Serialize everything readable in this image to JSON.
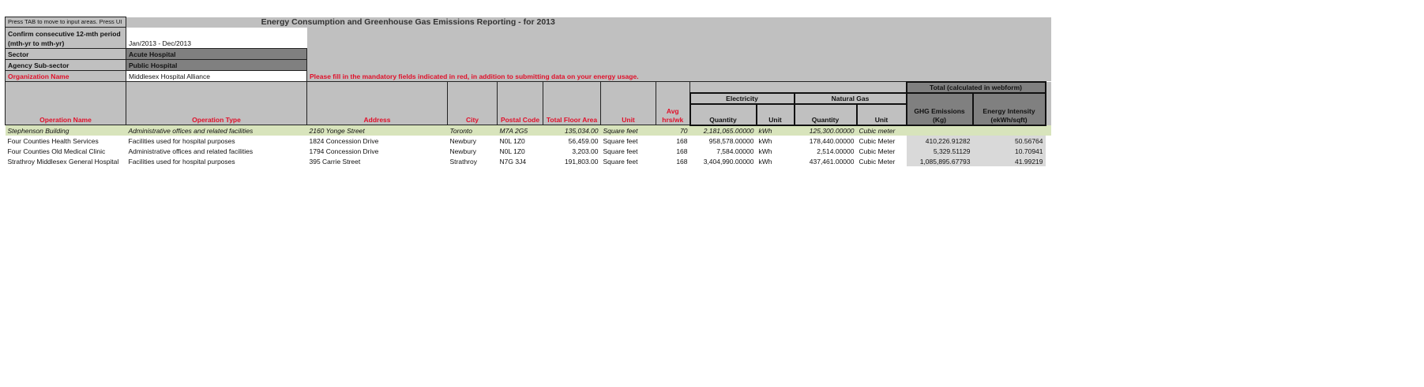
{
  "sheet": {
    "title": "Energy Consumption and Greenhouse Gas Emissions Reporting - for 2013",
    "press_tab_note": "Press TAB to move to input areas. Press UI",
    "mandatory_message": "Please fill in the mandatory fields indicated in red, in addition to submitting data on your energy usage.",
    "fields": {
      "period_label": "Confirm consecutive 12-mth period (mth-yr to mth-yr)",
      "period_value": "Jan/2013 - Dec/2013",
      "sector_label": "Sector",
      "sector_value": "Acute Hospital",
      "subsector_label": "Agency Sub-sector",
      "subsector_value": "Public Hospital",
      "org_label": "Organization Name",
      "org_value": "Middlesex Hospital Alliance"
    },
    "headers": {
      "operation_name": "Operation Name",
      "operation_type": "Operation Type",
      "address": "Address",
      "city": "City",
      "postal_code": "Postal Code",
      "floor_area": "Total Floor Area",
      "unit": "Unit",
      "avg_hrs": "Avg hrs/wk",
      "electricity": "Electricity",
      "natural_gas": "Natural Gas",
      "quantity": "Quantity",
      "qty_unit": "Unit",
      "total": "Total (calculated in webform)",
      "ghg": "GHG Emissions (Kg)",
      "intensity": "Energy Intensity (ekWh/sqft)"
    },
    "rows": [
      {
        "name": "Stephenson Building",
        "type": "Administrative offices and related facilities",
        "address": "2160 Yonge Street",
        "city": "Toronto",
        "postal": "M7A 2G5",
        "area": "135,034.00",
        "unit": "Square feet",
        "hrs": "70",
        "elec_qty": "2,181,065.00000",
        "elec_unit": "kWh",
        "gas_qty": "125,300.00000",
        "gas_unit": "Cubic meter",
        "ghg": "",
        "intensity": ""
      },
      {
        "name": "Four Counties Health Services",
        "type": "Facilities used for hospital purposes",
        "address": "1824 Concession Drive",
        "city": "Newbury",
        "postal": "N0L 1Z0",
        "area": "56,459.00",
        "unit": "Square feet",
        "hrs": "168",
        "elec_qty": "958,578.00000",
        "elec_unit": "kWh",
        "gas_qty": "178,440.00000",
        "gas_unit": "Cubic Meter",
        "ghg": "410,226.91282",
        "intensity": "50.56764"
      },
      {
        "name": "Four Counties Old Medical Clinic",
        "type": "Administrative offices and related facilities",
        "address": "1794 Concession Drive",
        "city": "Newbury",
        "postal": "N0L 1Z0",
        "area": "3,203.00",
        "unit": "Square feet",
        "hrs": "168",
        "elec_qty": "7,584.00000",
        "elec_unit": "kWh",
        "gas_qty": "2,514.00000",
        "gas_unit": "Cubic Meter",
        "ghg": "5,329.51129",
        "intensity": "10.70941"
      },
      {
        "name": "Strathroy Middlesex General Hospital",
        "type": "Facilities used for hospital purposes",
        "address": "395 Carrie Street",
        "city": "Strathroy",
        "postal": "N7G 3J4",
        "area": "191,803.00",
        "unit": "Square feet",
        "hrs": "168",
        "elec_qty": "3,404,990.00000",
        "elec_unit": "kWh",
        "gas_qty": "437,461.00000",
        "gas_unit": "Cubic Meter",
        "ghg": "1,085,895.67793",
        "intensity": "41.99219"
      }
    ],
    "colors": {
      "sheet_gray": "#c0c0c0",
      "dark_gray": "#808080",
      "highlight_row": "#d8e4bc",
      "required_red": "#e0102a",
      "calc_cell": "#d9d9d9"
    }
  }
}
